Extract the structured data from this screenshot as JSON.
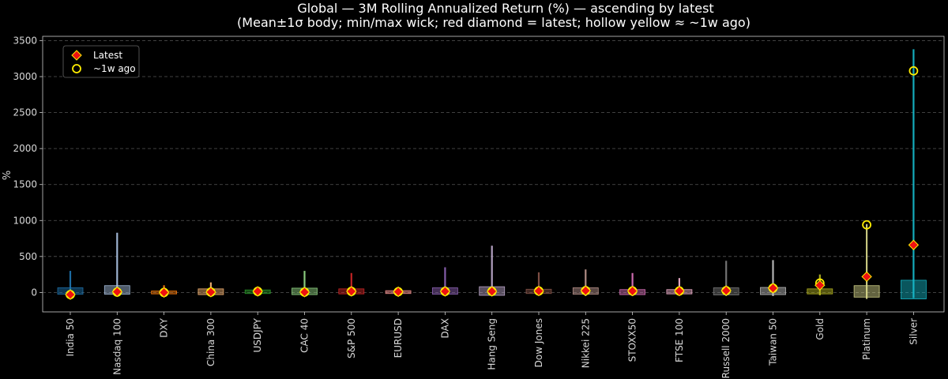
{
  "chart_data": {
    "type": "boxplot",
    "title": "Global — 3M Rolling Annualized Return (%) — ascending by latest",
    "subtitle": "(Mean±1σ body; min/max wick; red diamond = latest; hollow yellow ≈ ~1w ago)",
    "ylabel": "%",
    "ylim": [
      -270,
      3560
    ],
    "yticks": [
      0,
      500,
      1000,
      1500,
      2000,
      2500,
      3000,
      3500
    ],
    "grid": true,
    "legend_position": "top-left",
    "legend": {
      "latest": "Latest",
      "week_ago": "~1w ago"
    },
    "series": [
      {
        "name": "India 50",
        "color": "#1f77b4",
        "mean": 20,
        "sd": 45,
        "min": -40,
        "max": 300,
        "latest": -30,
        "week_ago": -30
      },
      {
        "name": "Nasdaq 100",
        "color": "#aec7e8",
        "mean": 35,
        "sd": 60,
        "min": -40,
        "max": 830,
        "latest": 10,
        "week_ago": 5
      },
      {
        "name": "DXY",
        "color": "#ff7f0e",
        "mean": 0,
        "sd": 20,
        "min": -30,
        "max": 100,
        "latest": 0,
        "week_ago": 0
      },
      {
        "name": "China 300",
        "color": "#ffbb78",
        "mean": 10,
        "sd": 40,
        "min": -50,
        "max": 140,
        "latest": 5,
        "week_ago": 5
      },
      {
        "name": "USDJPY",
        "color": "#2ca02c",
        "mean": 10,
        "sd": 25,
        "min": -20,
        "max": 60,
        "latest": 15,
        "week_ago": 15
      },
      {
        "name": "CAC 40",
        "color": "#98df8a",
        "mean": 15,
        "sd": 45,
        "min": -40,
        "max": 300,
        "latest": 5,
        "week_ago": 5
      },
      {
        "name": "S&P 500",
        "color": "#d62728",
        "mean": 15,
        "sd": 35,
        "min": -40,
        "max": 270,
        "latest": 15,
        "week_ago": 15
      },
      {
        "name": "EURUSD",
        "color": "#ff9896",
        "mean": 5,
        "sd": 20,
        "min": -20,
        "max": 50,
        "latest": 10,
        "week_ago": 10
      },
      {
        "name": "DAX",
        "color": "#9467bd",
        "mean": 20,
        "sd": 45,
        "min": -40,
        "max": 350,
        "latest": 15,
        "week_ago": 15
      },
      {
        "name": "Hang Seng",
        "color": "#c5b0d5",
        "mean": 20,
        "sd": 60,
        "min": -50,
        "max": 650,
        "latest": 15,
        "week_ago": 15
      },
      {
        "name": "Dow Jones",
        "color": "#8c564b",
        "mean": 15,
        "sd": 30,
        "min": -40,
        "max": 280,
        "latest": 20,
        "week_ago": 20
      },
      {
        "name": "Nikkei 225",
        "color": "#c49c94",
        "mean": 20,
        "sd": 45,
        "min": -50,
        "max": 320,
        "latest": 25,
        "week_ago": 25
      },
      {
        "name": "STOXX50",
        "color": "#e377c2",
        "mean": 5,
        "sd": 35,
        "min": -50,
        "max": 270,
        "latest": 20,
        "week_ago": 20
      },
      {
        "name": "FTSE 100",
        "color": "#f7b6d2",
        "mean": 10,
        "sd": 30,
        "min": -40,
        "max": 200,
        "latest": 20,
        "week_ago": 20
      },
      {
        "name": "Russell 2000",
        "color": "#7f7f7f",
        "mean": 15,
        "sd": 50,
        "min": -50,
        "max": 440,
        "latest": 25,
        "week_ago": 25
      },
      {
        "name": "Taiwan 50",
        "color": "#c7c7c7",
        "mean": 20,
        "sd": 50,
        "min": -50,
        "max": 450,
        "latest": 60,
        "week_ago": 60
      },
      {
        "name": "Gold",
        "color": "#bcbd22",
        "mean": 15,
        "sd": 35,
        "min": -40,
        "max": 250,
        "latest": 100,
        "week_ago": 130
      },
      {
        "name": "Platinum",
        "color": "#dbdb8d",
        "mean": 15,
        "sd": 80,
        "min": -90,
        "max": 950,
        "latest": 220,
        "week_ago": 940
      },
      {
        "name": "Silver",
        "color": "#17becf",
        "mean": 40,
        "sd": 130,
        "min": -80,
        "max": 3380,
        "latest": 660,
        "week_ago": 3080
      }
    ]
  }
}
